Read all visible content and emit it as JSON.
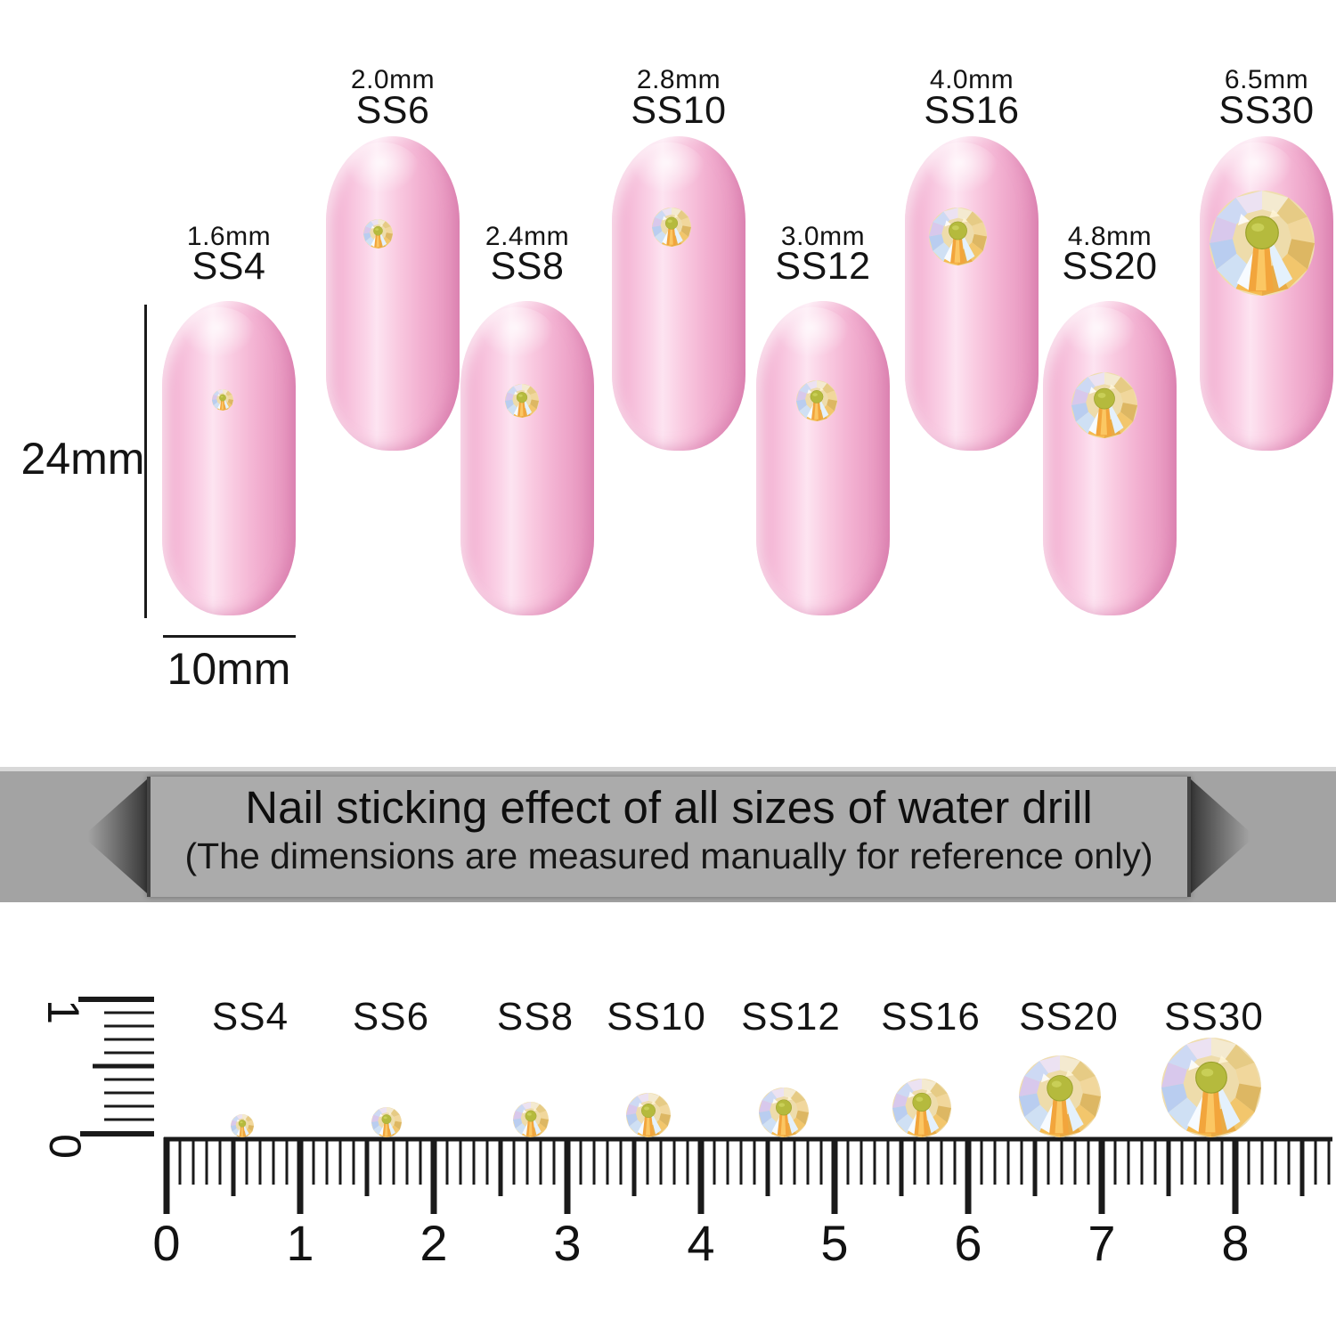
{
  "sizes": [
    {
      "code": "SS4",
      "mm": "1.6mm",
      "row": "lower"
    },
    {
      "code": "SS6",
      "mm": "2.0mm",
      "row": "upper"
    },
    {
      "code": "SS8",
      "mm": "2.4mm",
      "row": "lower"
    },
    {
      "code": "SS10",
      "mm": "2.8mm",
      "row": "upper"
    },
    {
      "code": "SS12",
      "mm": "3.0mm",
      "row": "lower"
    },
    {
      "code": "SS16",
      "mm": "4.0mm",
      "row": "upper"
    },
    {
      "code": "SS20",
      "mm": "4.8mm",
      "row": "lower"
    },
    {
      "code": "SS30",
      "mm": "6.5mm",
      "row": "upper"
    }
  ],
  "dimensions": {
    "length_label": "24mm",
    "width_label": "10mm"
  },
  "banner": {
    "title": "Nail sticking effect of all sizes of water drill",
    "subtitle": "(The dimensions are measured manually for reference only)"
  },
  "ruler": {
    "labels": [
      "SS4",
      "SS6",
      "SS8",
      "SS10",
      "SS12",
      "SS16",
      "SS20",
      "SS30"
    ],
    "numbers": [
      "0",
      "1",
      "2",
      "3",
      "4",
      "5",
      "6",
      "7",
      "8"
    ],
    "vertical_numbers": [
      "0",
      "1"
    ]
  },
  "colors": {
    "nail_pink": "#f5b9d7",
    "nail_highlight": "#fde4f1",
    "banner_gray": "#a3a3a3",
    "ribbon_gray": "#ababab",
    "gem_gold": "#e9ab45",
    "gem_amber": "#f2a53c",
    "gem_blue": "#c3d4f2",
    "gem_lavender": "#d8c8ec",
    "gem_olive": "#b5ba3d",
    "text": "#141414"
  }
}
